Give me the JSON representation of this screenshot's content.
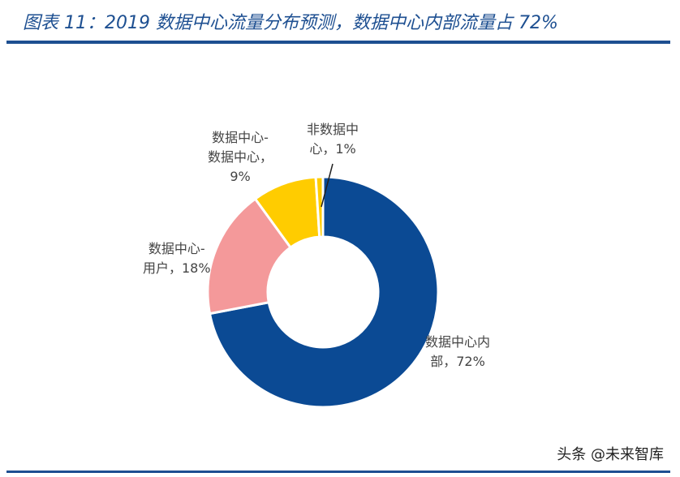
{
  "chart_data": {
    "type": "pie",
    "donut": true,
    "title": "图表 11：2019 数据中心流量分布预测，数据中心内部流量占 72%",
    "slices": [
      {
        "label": "数据中心内部",
        "value": 72,
        "display": "数据中心内\n部，72%",
        "color": "#0b4a94"
      },
      {
        "label": "数据中心-用户",
        "value": 18,
        "display": "数据中心-\n用户，18%",
        "color": "#f4999a"
      },
      {
        "label": "数据中心-数据中心",
        "value": 9,
        "display": "数据中心-\n数据中心，\n9%",
        "color": "#ffcc00"
      },
      {
        "label": "非数据中心",
        "value": 1,
        "display": "非数据中\n心，1%",
        "color": "#ffcc00"
      }
    ]
  },
  "watermark": "头条 @未来智库"
}
